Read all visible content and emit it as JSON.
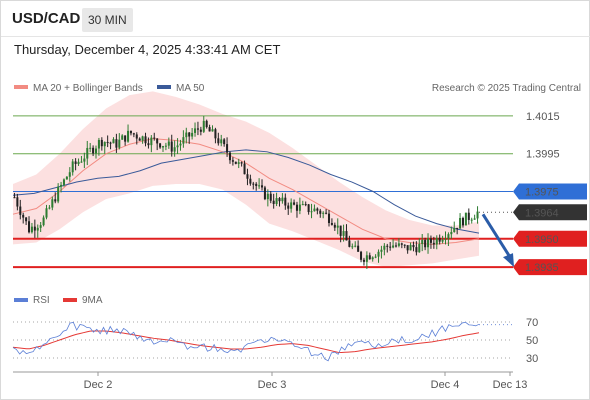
{
  "header": {
    "symbol": "USD/CAD",
    "timeframe": "30 MIN",
    "datetime": "Thursday, December 4, 2025 4:33:41 AM CET"
  },
  "legend": {
    "items": [
      {
        "label": "MA 20 + Bollinger Bands",
        "color": "#f28b82"
      },
      {
        "label": "MA 50",
        "color": "#3a5a99"
      }
    ],
    "credit": "Research © 2025 Trading Central"
  },
  "rsi_legend": {
    "items": [
      {
        "label": "RSI",
        "color": "#5b7fd6"
      },
      {
        "label": "9MA",
        "color": "#e53935"
      }
    ]
  },
  "chart_data": [
    {
      "type": "line",
      "name": "price",
      "ylim": [
        1.3925,
        1.4025
      ],
      "x_ticks": [
        "Dec 2",
        "Dec 3",
        "Dec 4",
        "Dec 13"
      ],
      "levels": [
        {
          "value": 1.4015,
          "label": "1.4015",
          "role": "resistance",
          "color": "#6aa84f"
        },
        {
          "value": 1.3995,
          "label": "1.3995",
          "role": "resistance",
          "color": "#6aa84f"
        },
        {
          "value": 1.3975,
          "label": "1.3975",
          "role": "pivot",
          "color": "#2f6fd6"
        },
        {
          "value": 1.3964,
          "label": "1.3964",
          "role": "last",
          "color": "#333333"
        },
        {
          "value": 1.395,
          "label": "1.3950",
          "role": "support",
          "color": "#e02020"
        },
        {
          "value": 1.3935,
          "label": "1.3935",
          "role": "support",
          "color": "#e02020"
        }
      ],
      "price_path": [
        1.3972,
        1.3955,
        1.396,
        1.3975,
        1.3988,
        1.3995,
        1.4002,
        1.4,
        1.4006,
        1.4003,
        1.4001,
        1.3998,
        1.4004,
        1.401,
        1.4003,
        1.3993,
        1.3985,
        1.3975,
        1.397,
        1.3968,
        1.3966,
        1.3965,
        1.396,
        1.3948,
        1.394,
        1.3943,
        1.3947,
        1.3945,
        1.3946,
        1.3949,
        1.3954,
        1.396,
        1.3964
      ],
      "ma50_path": [
        1.3973,
        1.3974,
        1.3977,
        1.398,
        1.3982,
        1.3983,
        1.3986,
        1.399,
        1.3992,
        1.3994,
        1.3996,
        1.3997,
        1.3996,
        1.3993,
        1.3989,
        1.3984,
        1.398,
        1.3975,
        1.3968,
        1.3962,
        1.3958,
        1.3955,
        1.3953
      ],
      "ma20_path": [
        1.3963,
        1.3966,
        1.3975,
        1.3986,
        1.3995,
        1.4,
        1.4003,
        1.4002,
        1.4,
        1.3996,
        1.399,
        1.3982,
        1.3976,
        1.3969,
        1.3962,
        1.3955,
        1.395,
        1.3948,
        1.3947,
        1.3948,
        1.395
      ],
      "forecast": {
        "from": 1.3964,
        "to": 1.3935,
        "direction": "down"
      }
    },
    {
      "type": "line",
      "name": "rsi",
      "ylim": [
        20,
        80
      ],
      "y_ticks": [
        70,
        50,
        30
      ],
      "series": [
        {
          "name": "RSI",
          "values": [
            40,
            35,
            45,
            58,
            66,
            64,
            60,
            62,
            55,
            48,
            52,
            45,
            40,
            42,
            38,
            40,
            45,
            50,
            48,
            44,
            35,
            30,
            40,
            46,
            44,
            48,
            50,
            52,
            58,
            64,
            68,
            67
          ]
        },
        {
          "name": "9MA",
          "values": [
            42,
            40,
            44,
            50,
            56,
            60,
            60,
            58,
            55,
            52,
            50,
            47,
            44,
            42,
            40,
            40,
            42,
            45,
            46,
            44,
            40,
            36,
            37,
            40,
            42,
            44,
            46,
            48,
            51,
            55,
            58
          ]
        }
      ]
    }
  ]
}
